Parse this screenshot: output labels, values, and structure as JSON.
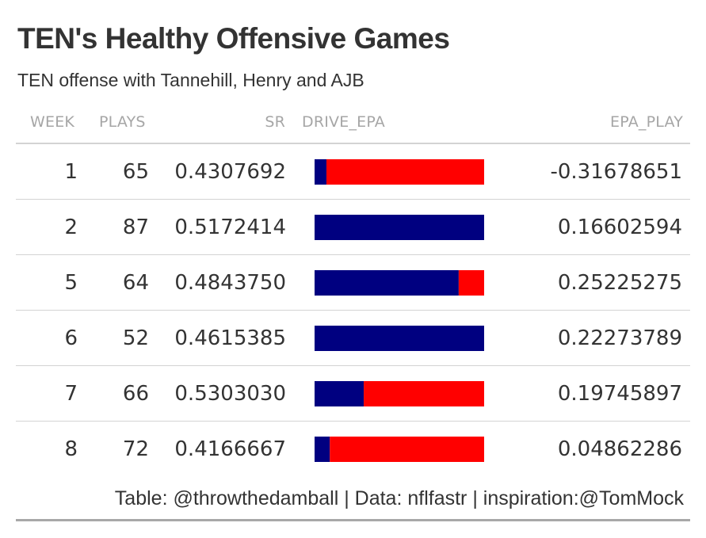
{
  "title": "TEN's Healthy Offensive Games",
  "subtitle": "TEN offense with Tannehill, Henry and AJB",
  "columns": [
    "WEEK",
    "PLAYS",
    "SR",
    "DRIVE_EPA",
    "EPA_PLAY"
  ],
  "footer": "Table: @throwthedamball | Data: nflfastr | inspiration:@TomMock",
  "colors": {
    "positive": "#000080",
    "negative": "#ff0000",
    "text": "#333333",
    "header": "#a6a6a6"
  },
  "chart_data": {
    "type": "table",
    "columns": [
      "WEEK",
      "PLAYS",
      "SR",
      "DRIVE_EPA",
      "EPA_PLAY"
    ],
    "rows": [
      {
        "week": "1",
        "plays": "65",
        "sr": "0.4307692",
        "drive_epa_positive_share": 0.07,
        "epa_play": "-0.31678651"
      },
      {
        "week": "2",
        "plays": "87",
        "sr": "0.5172414",
        "drive_epa_positive_share": 1.0,
        "epa_play": "0.16602594"
      },
      {
        "week": "5",
        "plays": "64",
        "sr": "0.4843750",
        "drive_epa_positive_share": 0.85,
        "epa_play": "0.25225275"
      },
      {
        "week": "6",
        "plays": "52",
        "sr": "0.4615385",
        "drive_epa_positive_share": 1.0,
        "epa_play": "0.22273789"
      },
      {
        "week": "7",
        "plays": "66",
        "sr": "0.5303030",
        "drive_epa_positive_share": 0.29,
        "epa_play": "0.19745897"
      },
      {
        "week": "8",
        "plays": "72",
        "sr": "0.4166667",
        "drive_epa_positive_share": 0.09,
        "epa_play": "0.04862286"
      }
    ]
  }
}
